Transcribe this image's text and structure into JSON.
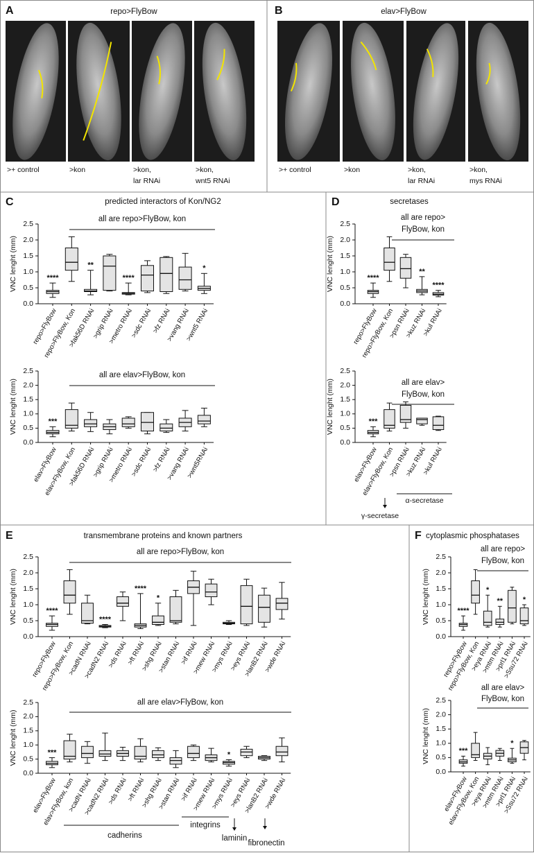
{
  "panel_a": {
    "letter": "A",
    "title": "repo>FlyBow",
    "image_labels": [
      [
        ">+ control"
      ],
      [
        ">kon"
      ],
      [
        ">kon,",
        "lar RNAi"
      ],
      [
        ">kon,",
        "wnt5 RNAi"
      ]
    ]
  },
  "panel_b": {
    "letter": "B",
    "title": "elav>FlyBow",
    "image_labels": [
      [
        ">+ control"
      ],
      [
        ">kon"
      ],
      [
        ">kon,",
        "lar RNAi"
      ],
      [
        ">kon,",
        "mys RNAi"
      ]
    ]
  },
  "panel_c": {
    "letter": "C",
    "title": "predicted interactors of Kon/NG2"
  },
  "panel_d": {
    "letter": "D",
    "title": "secretases"
  },
  "panel_e": {
    "letter": "E",
    "title": "transmembrane proteins and known partners"
  },
  "panel_f": {
    "letter": "F",
    "title": "cytoplasmic phosphatases"
  },
  "chart_data": [
    {
      "type": "box",
      "ylabel": "VNC lenght (mm)",
      "group_label": [
        "all are repo>FlyBow, kon"
      ],
      "categories": [
        "repo>FlyBow",
        "repo>FlyBow, Kon",
        ">fak56D RNAi",
        ">grip RNAi",
        ">metro RNAi",
        ">sdc RNAi",
        ">fz RNAi",
        ">vang RNAi",
        ">wnt5 RNAi"
      ],
      "min": [
        0.2,
        0.7,
        0.28,
        0.4,
        0.28,
        0.35,
        0.32,
        0.4,
        0.32
      ],
      "q1": [
        0.32,
        1.05,
        0.38,
        0.42,
        0.3,
        0.4,
        0.38,
        0.45,
        0.42
      ],
      "median": [
        0.38,
        1.3,
        0.4,
        1.18,
        0.33,
        0.9,
        0.95,
        0.75,
        0.48
      ],
      "q3": [
        0.42,
        1.75,
        0.45,
        1.5,
        0.35,
        1.2,
        1.45,
        1.15,
        0.55
      ],
      "max": [
        0.65,
        2.1,
        1.05,
        1.55,
        0.65,
        1.35,
        1.48,
        1.58,
        0.95
      ],
      "annotations": [
        "****",
        null,
        "**",
        null,
        "****",
        null,
        null,
        null,
        "*"
      ],
      "color": "#e4e4e4",
      "ylim": [
        0,
        2.5
      ],
      "yticks": [
        {
          "value": 0,
          "label": "0.0"
        },
        0.5,
        {
          "value": 1,
          "label": "1.0"
        },
        1.5,
        {
          "value": 2,
          "label": "2.0"
        },
        2.5
      ]
    },
    {
      "type": "box",
      "ylabel": "VNC lenght (mm)",
      "group_label": [
        "all are elav>FlyBow, kon"
      ],
      "categories": [
        "elav>FlyBow",
        "elav>FlyBow, Kon",
        ">fak56D RNAi",
        ">grip RNAi",
        ">metro RNAi",
        ">sdc RNAi",
        ">fz RNAi",
        ">vang RNAi",
        ">wnt5RNAi"
      ],
      "min": [
        0.2,
        0.4,
        0.38,
        0.3,
        0.5,
        0.3,
        0.35,
        0.4,
        0.55
      ],
      "q1": [
        0.3,
        0.5,
        0.55,
        0.45,
        0.55,
        0.4,
        0.4,
        0.55,
        0.65
      ],
      "median": [
        0.35,
        0.6,
        0.65,
        0.55,
        0.65,
        0.7,
        0.5,
        0.7,
        0.75
      ],
      "q3": [
        0.42,
        1.15,
        0.8,
        0.65,
        0.85,
        1.05,
        0.65,
        0.85,
        0.95
      ],
      "max": [
        0.55,
        1.38,
        1.05,
        0.8,
        0.9,
        1.05,
        0.8,
        1.12,
        1.2
      ],
      "annotations": [
        "***",
        null,
        null,
        null,
        null,
        null,
        null,
        null,
        null
      ],
      "color": "#e4e4e4",
      "ylim": [
        0,
        2.5
      ],
      "yticks": [
        {
          "value": 0,
          "label": "0.0"
        },
        0.5,
        {
          "value": 1,
          "label": "1.0"
        },
        1.5,
        {
          "value": 2,
          "label": "2.0"
        },
        2.5
      ]
    },
    {
      "type": "box",
      "ylabel": "VNC lenght (mm)",
      "group_label": [
        "all are repo>",
        "FlyBow, kon"
      ],
      "categories": [
        "repo>FlyBow",
        "repo>FlyBow, Kon",
        ">psn RNAi",
        ">kuz RNAi",
        ">kul RNAi"
      ],
      "min": [
        0.2,
        0.7,
        0.5,
        0.28,
        0.22
      ],
      "q1": [
        0.32,
        1.05,
        0.8,
        0.35,
        0.27
      ],
      "median": [
        0.38,
        1.3,
        1.1,
        0.4,
        0.3
      ],
      "q3": [
        0.42,
        1.75,
        1.45,
        0.45,
        0.35
      ],
      "max": [
        0.65,
        2.1,
        1.55,
        0.85,
        0.42
      ],
      "annotations": [
        "****",
        null,
        null,
        "**",
        "****"
      ],
      "color": "#e4e4e4",
      "ylim": [
        0,
        2.5
      ],
      "yticks": [
        {
          "value": 0,
          "label": "0.0"
        },
        0.5,
        {
          "value": 1,
          "label": "1.0"
        },
        1.5,
        {
          "value": 2,
          "label": "2.0"
        },
        2.5
      ]
    },
    {
      "type": "box",
      "ylabel": "VNC lenght (mm)",
      "group_label": [
        "all are elav>",
        "FlyBow, kon"
      ],
      "categories": [
        "elav>FlyBow",
        "elav>FlyBow, Kon",
        ">psn RNAi",
        ">kuz RNAi",
        ">kul RNAi"
      ],
      "min": [
        0.2,
        0.4,
        0.5,
        0.6,
        0.42
      ],
      "q1": [
        0.3,
        0.5,
        0.7,
        0.65,
        0.45
      ],
      "median": [
        0.35,
        0.6,
        0.8,
        0.8,
        0.6
      ],
      "q3": [
        0.42,
        1.15,
        1.3,
        0.85,
        0.9
      ],
      "max": [
        0.55,
        1.38,
        1.42,
        0.85,
        0.92
      ],
      "annotations": [
        "***",
        null,
        null,
        null,
        null
      ],
      "notes": [
        "γ-secretase",
        "α-secretase"
      ],
      "color": "#e4e4e4",
      "ylim": [
        0,
        2.5
      ],
      "yticks": [
        {
          "value": 0,
          "label": "0.0"
        },
        0.5,
        {
          "value": 1,
          "label": "1.0"
        },
        1.5,
        {
          "value": 2,
          "label": "2.0"
        },
        2.5
      ]
    },
    {
      "type": "box",
      "ylabel": "VNC lenght (mm)",
      "group_label": [
        "all are repo>FlyBow, kon"
      ],
      "categories": [
        "repo>FlyBow",
        "repo>FlyBow, Kon",
        ">cadN RNAi",
        ">cadN2 RNAi",
        ">ds RNAi",
        ">ft RNAi",
        ">shg RNAi",
        ">stan RNAi",
        ">if RNAi",
        ">mew RNAi",
        ">mys RNAi",
        ">eys RNAi",
        ">lanB2 RNAi",
        ">wde RNAi"
      ],
      "min": [
        0.2,
        0.7,
        0.4,
        0.28,
        0.5,
        0.25,
        0.35,
        0.4,
        0.35,
        1.0,
        0.38,
        0.35,
        0.3,
        0.55
      ],
      "q1": [
        0.32,
        1.05,
        0.42,
        0.3,
        0.95,
        0.3,
        0.38,
        0.45,
        1.35,
        1.25,
        0.4,
        0.4,
        0.45,
        0.85
      ],
      "median": [
        0.38,
        1.3,
        0.5,
        0.32,
        1.05,
        0.35,
        0.45,
        0.5,
        1.55,
        1.4,
        0.42,
        0.95,
        0.92,
        1.05
      ],
      "q3": [
        0.42,
        1.75,
        1.05,
        0.35,
        1.25,
        0.4,
        0.65,
        1.25,
        1.75,
        1.65,
        0.45,
        1.6,
        1.3,
        1.2
      ],
      "max": [
        0.65,
        2.1,
        1.3,
        0.38,
        1.4,
        1.35,
        1.05,
        1.45,
        2.05,
        1.8,
        0.5,
        1.8,
        1.52,
        1.7
      ],
      "annotations": [
        "****",
        null,
        null,
        "****",
        null,
        "****",
        "*",
        null,
        null,
        null,
        null,
        null,
        null,
        null
      ],
      "color": "#e4e4e4",
      "ylim": [
        0,
        2.5
      ],
      "yticks": [
        {
          "value": 0,
          "label": "0.0"
        },
        0.5,
        {
          "value": 1,
          "label": "1.0"
        },
        1.5,
        {
          "value": 2,
          "label": "2.0"
        },
        2.5
      ]
    },
    {
      "type": "box",
      "ylabel": "VNC lenght (mm)",
      "group_label": [
        "all are elav>FlyBow, kon"
      ],
      "categories": [
        "elav>FlyBow",
        "elav>FlyBow, kon",
        ">cadN RNAi",
        ">cadN2 RNAi",
        ">ds RNAi",
        ">ft RNAi",
        ">shg RNAi",
        ">stan RNAi",
        ">if RNAi",
        ">mew RNAi",
        ">mys RNAi",
        ">eys RNAi",
        ">lanB2 RNAi",
        ">wde RNAi"
      ],
      "min": [
        0.2,
        0.4,
        0.35,
        0.45,
        0.45,
        0.4,
        0.45,
        0.2,
        0.45,
        0.4,
        0.25,
        0.55,
        0.45,
        0.4
      ],
      "q1": [
        0.3,
        0.5,
        0.55,
        0.6,
        0.6,
        0.5,
        0.55,
        0.32,
        0.55,
        0.45,
        0.32,
        0.62,
        0.5,
        0.62
      ],
      "median": [
        0.35,
        0.6,
        0.7,
        0.68,
        0.7,
        0.6,
        0.65,
        0.45,
        0.7,
        0.55,
        0.38,
        0.75,
        0.55,
        0.75
      ],
      "q3": [
        0.42,
        1.15,
        0.95,
        0.8,
        0.8,
        0.95,
        0.8,
        0.55,
        0.95,
        0.65,
        0.42,
        0.85,
        0.6,
        0.95
      ],
      "max": [
        0.55,
        1.38,
        1.12,
        1.42,
        0.92,
        1.22,
        0.9,
        0.8,
        1.0,
        0.88,
        0.48,
        0.95,
        0.62,
        1.25
      ],
      "annotations": [
        "***",
        null,
        null,
        null,
        null,
        null,
        null,
        null,
        null,
        null,
        "*",
        null,
        null,
        null
      ],
      "notes": [
        "cadherins",
        "integrins",
        "laminin",
        "fibronectin"
      ],
      "color": "#e4e4e4",
      "ylim": [
        0,
        2.5
      ],
      "yticks": [
        {
          "value": 0,
          "label": "0.0"
        },
        0.5,
        {
          "value": 1,
          "label": "1.0"
        },
        1.5,
        {
          "value": 2,
          "label": "2.0"
        },
        2.5
      ]
    },
    {
      "type": "box",
      "ylabel": "VNC lenght (mm)",
      "group_label": [
        "all are repo>",
        "FlyBow, kon"
      ],
      "categories": [
        "repo>FlyBow",
        "repo>FlyBow, Kon",
        ">eya RNAi",
        ">mtm RNAi",
        ">prl1 RNAi",
        ">Ssu72 RNAi"
      ],
      "min": [
        0.2,
        0.7,
        0.3,
        0.3,
        0.4,
        0.35
      ],
      "q1": [
        0.32,
        1.05,
        0.35,
        0.38,
        0.45,
        0.4
      ],
      "median": [
        0.38,
        1.3,
        0.45,
        0.45,
        0.9,
        0.5
      ],
      "q3": [
        0.42,
        1.75,
        0.8,
        0.55,
        1.45,
        0.9
      ],
      "max": [
        0.65,
        2.1,
        1.3,
        0.95,
        1.55,
        1.0
      ],
      "annotations": [
        "****",
        null,
        "*",
        "**",
        null,
        "*"
      ],
      "color": "#e4e4e4",
      "ylim": [
        0,
        2.5
      ],
      "yticks": [
        {
          "value": 0,
          "label": "0.0"
        },
        0.5,
        {
          "value": 1,
          "label": "1.0"
        },
        1.5,
        {
          "value": 2,
          "label": "2.0"
        },
        2.5
      ]
    },
    {
      "type": "box",
      "ylabel": "VNC lenght (mm)",
      "group_label": [
        "all are elav>",
        "FlyBow, kon"
      ],
      "categories": [
        "elav>FlyBow",
        "elav>FlyBow, Kon",
        ">eya RNAi",
        ">mtm RNAi",
        ">prl1 RNAi",
        ">Ssu72 RNAi"
      ],
      "min": [
        0.2,
        0.4,
        0.25,
        0.4,
        0.3,
        0.42
      ],
      "q1": [
        0.3,
        0.5,
        0.45,
        0.55,
        0.35,
        0.65
      ],
      "median": [
        0.35,
        0.6,
        0.55,
        0.65,
        0.42,
        0.85
      ],
      "q3": [
        0.42,
        1.0,
        0.65,
        0.75,
        0.48,
        1.05
      ],
      "max": [
        0.55,
        1.38,
        0.85,
        0.82,
        0.82,
        1.1
      ],
      "annotations": [
        "***",
        null,
        null,
        null,
        "*",
        null
      ],
      "color": "#e4e4e4",
      "ylim": [
        0,
        2.5
      ],
      "yticks": [
        {
          "value": 0,
          "label": "0.0"
        },
        0.5,
        {
          "value": 1,
          "label": "1.0"
        },
        1.5,
        {
          "value": 2,
          "label": "2.0"
        },
        2.5
      ]
    }
  ]
}
